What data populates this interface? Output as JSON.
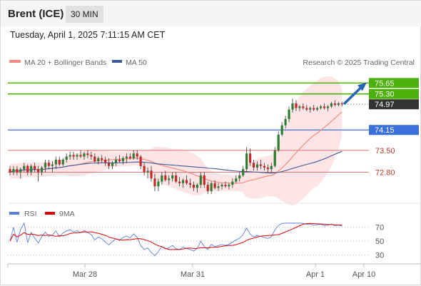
{
  "header": {
    "symbol": "Brent (ICE)",
    "timeframe": "30 MIN",
    "timestamp": "Tuesday, April 1, 2025 7:11:15 AM CET"
  },
  "legend": {
    "ma20_label": "MA 20 + Bollinger Bands",
    "ma50_label": "MA 50",
    "copyright": "Research © 2025 Trading Central"
  },
  "rsi_legend": {
    "rsi_label": "RSI",
    "ma_label": "9MA"
  },
  "colors": {
    "up_candle": "#2e7d32",
    "down_candle": "#c62828",
    "ma20": "#f28b82",
    "ma50": "#3a5a9a",
    "bands_fill": "#fde1e1",
    "target": "#4caf0a",
    "pivot": "#3b6fdc",
    "support": "#e57373",
    "arrow": "#2864b4",
    "rsi_line": "#5b7fd6",
    "rsi_ma": "#e00000"
  },
  "chart_data": [
    {
      "type": "candlestick",
      "title": "Brent (ICE) 30 MIN",
      "x_ticks": [
        "Mar 28",
        "Mar 31",
        "Apr 1",
        "Apr 10"
      ],
      "price_levels": [
        {
          "value": 75.65,
          "label": "75.65",
          "kind": "target"
        },
        {
          "value": 75.3,
          "label": "75.30",
          "kind": "target"
        },
        {
          "value": 74.97,
          "label": "74.97",
          "kind": "last_price"
        },
        {
          "value": 74.15,
          "label": "74.15",
          "kind": "pivot"
        },
        {
          "value": 73.5,
          "label": "73.50",
          "kind": "support"
        },
        {
          "value": 72.8,
          "label": "72.80",
          "kind": "support"
        }
      ],
      "ylim": [
        71.9,
        76.0
      ],
      "candles": [
        [
          72.9,
          73.0,
          72.7,
          72.8
        ],
        [
          72.8,
          73.0,
          72.7,
          72.9
        ],
        [
          72.9,
          73.0,
          72.7,
          72.8
        ],
        [
          72.8,
          72.95,
          72.6,
          72.9
        ],
        [
          72.9,
          73.1,
          72.8,
          73.0
        ],
        [
          73.0,
          73.05,
          72.7,
          72.8
        ],
        [
          72.8,
          73.05,
          72.7,
          73.0
        ],
        [
          73.0,
          73.1,
          72.8,
          72.9
        ],
        [
          72.9,
          73.0,
          72.5,
          72.8
        ],
        [
          72.8,
          73.0,
          72.7,
          72.95
        ],
        [
          72.95,
          73.2,
          72.8,
          73.1
        ],
        [
          73.1,
          73.2,
          72.9,
          73.0
        ],
        [
          73.0,
          73.15,
          72.8,
          73.05
        ],
        [
          73.05,
          73.3,
          72.9,
          73.2
        ],
        [
          73.2,
          73.3,
          73.0,
          73.05
        ],
        [
          73.05,
          73.25,
          73.0,
          73.2
        ],
        [
          73.2,
          73.4,
          73.1,
          73.3
        ],
        [
          73.3,
          73.45,
          73.2,
          73.35
        ],
        [
          73.35,
          73.45,
          73.2,
          73.3
        ],
        [
          73.3,
          73.4,
          73.2,
          73.35
        ],
        [
          73.35,
          73.5,
          73.25,
          73.3
        ],
        [
          73.3,
          73.45,
          73.2,
          73.4
        ],
        [
          73.4,
          73.5,
          73.25,
          73.35
        ],
        [
          73.35,
          73.45,
          73.2,
          73.3
        ],
        [
          73.3,
          73.4,
          73.1,
          73.15
        ],
        [
          73.15,
          73.3,
          73.05,
          73.25
        ],
        [
          73.25,
          73.35,
          73.1,
          73.2
        ],
        [
          73.2,
          73.3,
          73.0,
          73.1
        ],
        [
          73.1,
          73.25,
          72.9,
          73.0
        ],
        [
          73.0,
          73.15,
          72.9,
          73.1
        ],
        [
          73.1,
          73.3,
          73.0,
          73.2
        ],
        [
          73.2,
          73.35,
          73.1,
          73.15
        ],
        [
          73.15,
          73.3,
          73.05,
          73.25
        ],
        [
          73.25,
          73.4,
          73.1,
          73.3
        ],
        [
          73.3,
          73.4,
          73.2,
          73.25
        ],
        [
          73.25,
          73.5,
          73.2,
          73.4
        ],
        [
          73.4,
          73.5,
          73.2,
          73.3
        ],
        [
          73.3,
          73.35,
          72.9,
          73.0
        ],
        [
          73.0,
          73.1,
          72.7,
          72.8
        ],
        [
          72.8,
          72.95,
          72.6,
          72.85
        ],
        [
          72.85,
          73.0,
          72.5,
          72.6
        ],
        [
          72.6,
          72.75,
          72.2,
          72.35
        ],
        [
          72.35,
          72.6,
          72.2,
          72.5
        ],
        [
          72.5,
          72.8,
          72.4,
          72.7
        ],
        [
          72.7,
          72.85,
          72.5,
          72.55
        ],
        [
          72.55,
          72.7,
          72.4,
          72.6
        ],
        [
          72.6,
          72.8,
          72.5,
          72.7
        ],
        [
          72.7,
          72.8,
          72.45,
          72.5
        ],
        [
          72.5,
          72.65,
          72.35,
          72.45
        ],
        [
          72.45,
          72.6,
          72.3,
          72.55
        ],
        [
          72.55,
          72.7,
          72.4,
          72.45
        ],
        [
          72.45,
          72.6,
          72.3,
          72.4
        ],
        [
          72.4,
          72.5,
          72.2,
          72.3
        ],
        [
          72.3,
          72.45,
          72.15,
          72.4
        ],
        [
          72.4,
          72.8,
          72.3,
          72.7
        ],
        [
          72.7,
          72.8,
          72.3,
          72.4
        ],
        [
          72.4,
          72.5,
          72.1,
          72.2
        ],
        [
          72.2,
          72.5,
          72.1,
          72.45
        ],
        [
          72.45,
          72.55,
          72.25,
          72.3
        ],
        [
          72.3,
          72.45,
          72.2,
          72.35
        ],
        [
          72.35,
          72.45,
          72.25,
          72.4
        ],
        [
          72.4,
          72.5,
          72.3,
          72.35
        ],
        [
          72.35,
          72.45,
          72.25,
          72.4
        ],
        [
          72.4,
          72.6,
          72.3,
          72.5
        ],
        [
          72.5,
          72.7,
          72.45,
          72.6
        ],
        [
          72.6,
          72.8,
          72.5,
          72.7
        ],
        [
          72.7,
          73.0,
          72.65,
          72.9
        ],
        [
          72.9,
          73.6,
          72.8,
          73.4
        ],
        [
          73.4,
          73.55,
          73.0,
          73.1
        ],
        [
          73.1,
          73.2,
          72.85,
          72.95
        ],
        [
          72.95,
          73.15,
          72.85,
          73.05
        ],
        [
          73.05,
          73.2,
          72.9,
          73.0
        ],
        [
          73.0,
          73.1,
          72.85,
          72.95
        ],
        [
          72.95,
          73.05,
          72.8,
          72.9
        ],
        [
          72.9,
          73.1,
          72.8,
          73.0
        ],
        [
          73.0,
          73.6,
          72.95,
          73.5
        ],
        [
          73.5,
          74.1,
          73.45,
          74.0
        ],
        [
          74.0,
          74.4,
          73.95,
          74.3
        ],
        [
          74.3,
          74.6,
          74.2,
          74.5
        ],
        [
          74.5,
          74.9,
          74.4,
          74.8
        ],
        [
          74.8,
          75.15,
          74.7,
          75.0
        ],
        [
          75.0,
          75.1,
          74.75,
          74.85
        ],
        [
          74.85,
          74.95,
          74.75,
          74.9
        ],
        [
          74.9,
          75.0,
          74.8,
          74.85
        ],
        [
          74.85,
          74.95,
          74.75,
          74.8
        ],
        [
          74.8,
          74.9,
          74.7,
          74.85
        ],
        [
          74.85,
          74.95,
          74.75,
          74.8
        ],
        [
          74.8,
          74.9,
          74.75,
          74.85
        ],
        [
          74.85,
          74.95,
          74.8,
          74.9
        ],
        [
          74.9,
          75.0,
          74.8,
          74.85
        ],
        [
          74.85,
          74.95,
          74.75,
          74.9
        ],
        [
          74.9,
          75.05,
          74.85,
          75.0
        ],
        [
          75.0,
          75.1,
          74.9,
          74.95
        ],
        [
          74.95,
          75.05,
          74.9,
          75.0
        ],
        [
          75.0,
          75.05,
          74.9,
          74.97
        ]
      ]
    },
    {
      "type": "line",
      "title": "RSI",
      "y_ticks": [
        30,
        50,
        70
      ],
      "ylim": [
        20,
        80
      ]
    }
  ]
}
